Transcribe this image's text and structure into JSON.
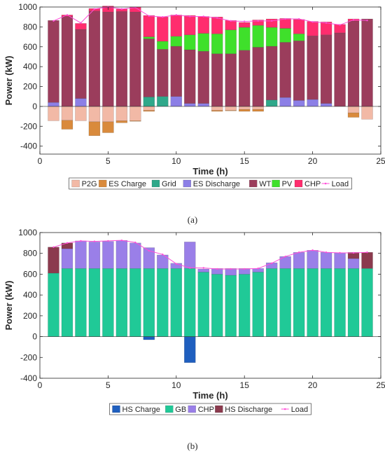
{
  "figure": {
    "colors": {
      "P2G": "#f2b9a6",
      "ES Charge": "#d98a3c",
      "Grid": "#2fa88a",
      "ES Discharge": "#8c7fe6",
      "WT": "#9b3d5c",
      "PV": "#3fe02b",
      "CHP_elec": "#ff2d6e",
      "Load": "#ff4fd8",
      "HS Charge": "#1f5fbf",
      "GB": "#20c997",
      "CHP_heat": "#9a7fe8",
      "HS Discharge": "#8b3a4e"
    }
  },
  "chart_data": [
    {
      "panel_label": "(a)",
      "type": "bar",
      "stacked": true,
      "xlabel": "Time (h)",
      "ylabel": "Power (kW)",
      "xlim": [
        0,
        25
      ],
      "ylim": [
        -480,
        1000
      ],
      "xticks": [
        0,
        5,
        10,
        15,
        20,
        25
      ],
      "yticks": [
        -400,
        -200,
        0,
        200,
        400,
        600,
        800,
        1000
      ],
      "legend": [
        "P2G",
        "ES Charge",
        "Grid",
        "ES Discharge",
        "WT",
        "PV",
        "CHP",
        "Load"
      ],
      "legend_position": "bottom",
      "grid": false,
      "x": [
        1,
        2,
        3,
        4,
        5,
        6,
        7,
        8,
        9,
        10,
        11,
        12,
        13,
        14,
        15,
        16,
        17,
        18,
        19,
        20,
        21,
        22,
        23,
        24
      ],
      "series": [
        {
          "name": "P2G",
          "color_key": "P2G",
          "values": [
            -145,
            -140,
            -145,
            -155,
            -155,
            -145,
            -145,
            -40,
            0,
            0,
            0,
            0,
            -40,
            -40,
            -30,
            -30,
            0,
            0,
            0,
            0,
            0,
            0,
            -65,
            -130
          ]
        },
        {
          "name": "ES Charge",
          "color_key": "ES Charge",
          "values": [
            0,
            -90,
            0,
            -140,
            -110,
            -20,
            -5,
            -10,
            0,
            0,
            0,
            0,
            -10,
            -5,
            -20,
            -20,
            0,
            0,
            0,
            0,
            0,
            0,
            -45,
            0
          ]
        },
        {
          "name": "Grid",
          "color_key": "Grid",
          "values": [
            0,
            0,
            0,
            0,
            0,
            0,
            0,
            95,
            100,
            0,
            0,
            0,
            0,
            0,
            0,
            0,
            65,
            0,
            0,
            0,
            0,
            0,
            0,
            0
          ]
        },
        {
          "name": "ES Discharge",
          "color_key": "ES Discharge",
          "values": [
            40,
            0,
            80,
            0,
            0,
            0,
            0,
            0,
            0,
            100,
            30,
            30,
            0,
            0,
            0,
            0,
            0,
            90,
            60,
            70,
            30,
            0,
            0,
            0
          ]
        },
        {
          "name": "WT",
          "color_key": "WT",
          "values": [
            825,
            905,
            695,
            960,
            950,
            955,
            950,
            585,
            475,
            505,
            540,
            525,
            530,
            530,
            565,
            595,
            540,
            555,
            600,
            640,
            690,
            740,
            860,
            880
          ]
        },
        {
          "name": "PV",
          "color_key": "PV",
          "values": [
            0,
            0,
            0,
            0,
            0,
            0,
            0,
            20,
            80,
            100,
            150,
            180,
            200,
            240,
            230,
            220,
            190,
            140,
            70,
            0,
            0,
            0,
            0,
            0
          ]
        },
        {
          "name": "CHP",
          "color_key": "CHP_elec",
          "values": [
            0,
            15,
            60,
            25,
            60,
            25,
            50,
            215,
            245,
            215,
            195,
            170,
            170,
            95,
            50,
            55,
            85,
            100,
            145,
            145,
            130,
            85,
            20,
            0
          ]
        },
        {
          "name": "Load",
          "color_key": "Load",
          "type": "line",
          "values": [
            860,
            920,
            840,
            980,
            1000,
            980,
            995,
            910,
            900,
            920,
            905,
            905,
            890,
            860,
            855,
            860,
            860,
            880,
            880,
            850,
            840,
            820,
            870,
            865
          ]
        }
      ]
    },
    {
      "panel_label": "(b)",
      "type": "bar",
      "stacked": true,
      "xlabel": "Time (h)",
      "ylabel": "Power (kW)",
      "xlim": [
        0,
        25
      ],
      "ylim": [
        -400,
        1000
      ],
      "xticks": [
        0,
        5,
        10,
        15,
        20,
        25
      ],
      "yticks": [
        -400,
        -200,
        0,
        200,
        400,
        600,
        800,
        1000
      ],
      "legend": [
        "HS Charge",
        "GB",
        "CHP",
        "HS Discharge",
        "Load"
      ],
      "legend_position": "bottom",
      "grid": false,
      "x": [
        1,
        2,
        3,
        4,
        5,
        6,
        7,
        8,
        9,
        10,
        11,
        12,
        13,
        14,
        15,
        16,
        17,
        18,
        19,
        20,
        21,
        22,
        23,
        24
      ],
      "series": [
        {
          "name": "HS Charge",
          "color_key": "HS Charge",
          "values": [
            0,
            0,
            0,
            0,
            0,
            0,
            0,
            -30,
            0,
            0,
            -250,
            0,
            0,
            0,
            0,
            0,
            0,
            0,
            0,
            0,
            0,
            0,
            0,
            0
          ]
        },
        {
          "name": "GB",
          "color_key": "GB",
          "values": [
            610,
            655,
            655,
            655,
            655,
            655,
            655,
            655,
            655,
            655,
            655,
            620,
            600,
            590,
            600,
            620,
            655,
            655,
            655,
            655,
            655,
            655,
            655,
            655
          ]
        },
        {
          "name": "CHP",
          "color_key": "CHP_heat",
          "values": [
            0,
            190,
            265,
            255,
            260,
            270,
            245,
            200,
            130,
            50,
            255,
            30,
            55,
            65,
            55,
            35,
            55,
            115,
            155,
            175,
            155,
            150,
            95,
            0
          ]
        },
        {
          "name": "HS Discharge",
          "color_key": "HS Discharge",
          "values": [
            250,
            55,
            0,
            0,
            0,
            0,
            0,
            0,
            0,
            0,
            0,
            0,
            0,
            0,
            0,
            0,
            0,
            0,
            0,
            0,
            0,
            0,
            60,
            155
          ]
        },
        {
          "name": "Load",
          "color_key": "Load",
          "type": "line",
          "values": [
            860,
            900,
            920,
            915,
            920,
            925,
            905,
            825,
            790,
            700,
            660,
            660,
            650,
            650,
            650,
            655,
            705,
            770,
            810,
            830,
            810,
            805,
            805,
            810
          ]
        }
      ]
    }
  ]
}
